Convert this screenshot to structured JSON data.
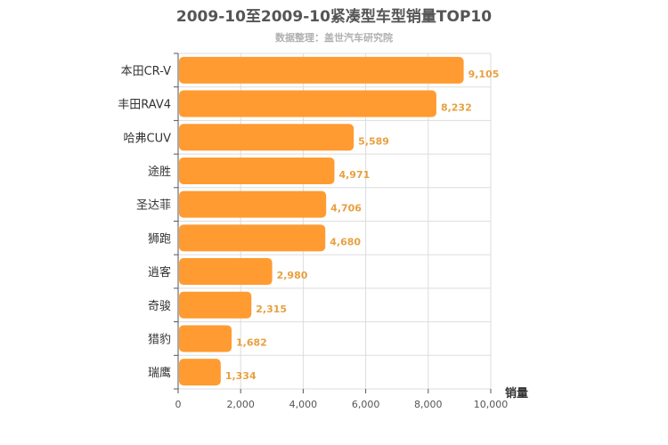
{
  "chart_data": {
    "type": "bar",
    "orientation": "horizontal",
    "title": "2009-10至2009-10紧凑型车型销量TOP10",
    "subtitle": "数据整理：盖世汽车研究院",
    "xlabel": "销量",
    "categories": [
      "本田CR-V",
      "丰田RAV4",
      "哈弗CUV",
      "途胜",
      "圣达菲",
      "狮跑",
      "逍客",
      "奇骏",
      "猎豹",
      "瑞鹰"
    ],
    "values": [
      9105,
      8232,
      5589,
      4971,
      4706,
      4680,
      2980,
      2315,
      1682,
      1334
    ],
    "value_labels": [
      "9,105",
      "8,232",
      "5,589",
      "4,971",
      "4,706",
      "4,680",
      "2,980",
      "2,315",
      "1,682",
      "1,334"
    ],
    "xlim": [
      0,
      10000
    ],
    "xticks": [
      0,
      2000,
      4000,
      6000,
      8000,
      10000
    ],
    "xtick_labels": [
      "0",
      "2,000",
      "4,000",
      "6,000",
      "8,000",
      "10,000"
    ],
    "grid": true,
    "legend": "none",
    "bar_color": "#ff9b30",
    "label_color": "#e8a040"
  }
}
